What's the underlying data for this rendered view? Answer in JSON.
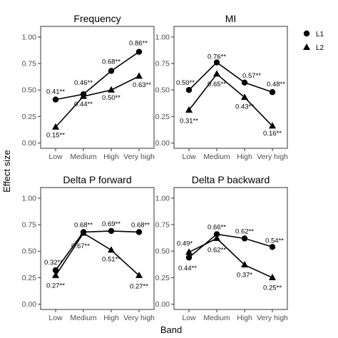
{
  "chart_data": {
    "type": "line",
    "xlabel": "Band",
    "ylabel": "Effect size",
    "ylim": [
      0,
      1.1
    ],
    "yticks": [
      "0.00",
      "0.25",
      "0.50",
      "0.75",
      "1.00"
    ],
    "categories": [
      "Low",
      "Medium",
      "High",
      "Very high"
    ],
    "legend": {
      "position": "top-right",
      "entries": [
        {
          "name": "L1",
          "marker": "circle"
        },
        {
          "name": "L2",
          "marker": "triangle"
        }
      ]
    },
    "panels": [
      {
        "title": "Frequency",
        "series": [
          {
            "name": "L1",
            "values": [
              0.41,
              0.46,
              0.68,
              0.86
            ],
            "labels": [
              "0.41**",
              "0.46**",
              "0.68**",
              "0.86**"
            ]
          },
          {
            "name": "L2",
            "values": [
              0.15,
              0.44,
              0.5,
              0.63
            ],
            "labels": [
              "0.15**",
              "0.44**",
              "0.50**",
              "0.63**"
            ]
          }
        ]
      },
      {
        "title": "MI",
        "series": [
          {
            "name": "L1",
            "values": [
              0.5,
              0.76,
              0.57,
              0.48
            ],
            "labels": [
              "0.50**",
              "0.76**",
              "0.57**",
              "0.48**"
            ]
          },
          {
            "name": "L2",
            "values": [
              0.31,
              0.65,
              0.43,
              0.16
            ],
            "labels": [
              "0.31**",
              "0.65**",
              "0.43**",
              "0.16**"
            ]
          }
        ]
      },
      {
        "title": "Delta P forward",
        "series": [
          {
            "name": "L1",
            "values": [
              0.32,
              0.68,
              0.69,
              0.68
            ],
            "labels": [
              "0.32**",
              "0.68**",
              "0.69**",
              "0.68**"
            ]
          },
          {
            "name": "L2",
            "values": [
              0.27,
              0.67,
              0.51,
              0.27
            ],
            "labels": [
              "0.27**",
              "0.67**",
              "0.51**",
              "0.27**"
            ]
          }
        ]
      },
      {
        "title": "Delta P backward",
        "series": [
          {
            "name": "L1",
            "values": [
              0.44,
              0.66,
              0.62,
              0.54
            ],
            "labels": [
              "0.44**",
              "0.66**",
              "0.62**",
              "0.54**"
            ]
          },
          {
            "name": "L2",
            "values": [
              0.49,
              0.62,
              0.37,
              0.25
            ],
            "labels": [
              "0.49*",
              "0.62**",
              "0.37*",
              "0.25**"
            ]
          }
        ]
      }
    ]
  }
}
